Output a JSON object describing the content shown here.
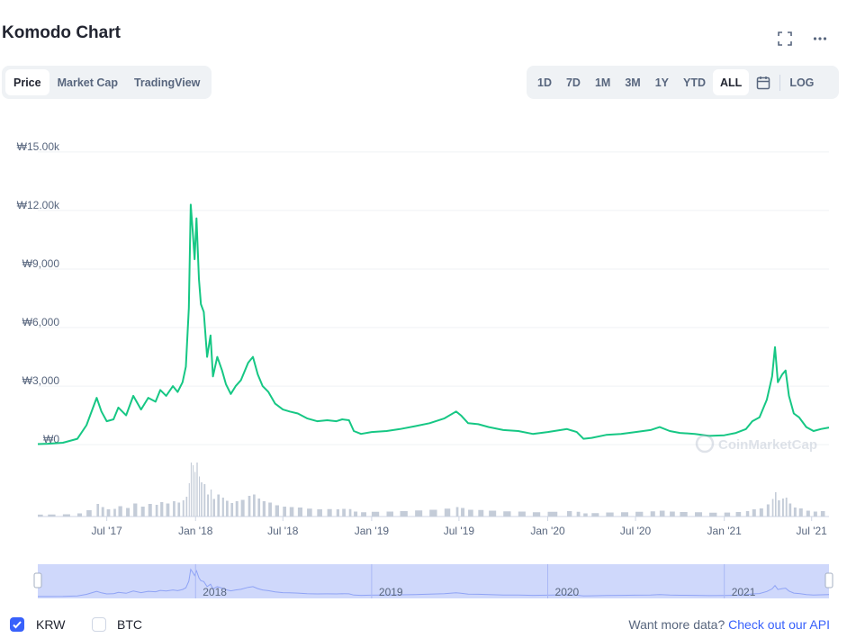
{
  "header": {
    "title": "Komodo Chart"
  },
  "icons": {
    "expand": "expand-icon",
    "more": "more-icon",
    "calendar": "calendar-icon"
  },
  "tabs": [
    {
      "label": "Price",
      "active": true
    },
    {
      "label": "Market Cap",
      "active": false
    },
    {
      "label": "TradingView",
      "active": false
    }
  ],
  "ranges": [
    {
      "label": "1D",
      "active": false
    },
    {
      "label": "7D",
      "active": false
    },
    {
      "label": "1M",
      "active": false
    },
    {
      "label": "3M",
      "active": false
    },
    {
      "label": "1Y",
      "active": false
    },
    {
      "label": "YTD",
      "active": false
    },
    {
      "label": "ALL",
      "active": true
    }
  ],
  "log_label": "LOG",
  "watermark": "CoinMarketCap",
  "footer": {
    "krw_label": "KRW",
    "btc_label": "BTC",
    "krw_checked": true,
    "btc_checked": false,
    "more_data_text": "Want more data?",
    "api_link": "Check out our API"
  },
  "colors": {
    "line": "#16c784",
    "volume": "#c4ccd8",
    "navigator_fill": "#cfd8fb",
    "navigator_line": "#8fa3f5",
    "accent": "#3861fb",
    "grid": "#eff2f5"
  },
  "chart_data": {
    "type": "line",
    "title": "Komodo Chart",
    "currency": "KRW",
    "y_ticks": [
      "₩0",
      "₩3,000",
      "₩6,000",
      "₩9,000",
      "₩12.00k",
      "₩15.00k"
    ],
    "y_tick_values": [
      0,
      3000,
      6000,
      9000,
      12000,
      15000
    ],
    "ylim": [
      -500,
      15500
    ],
    "x_ticks": [
      "Jul '17",
      "Jan '18",
      "Jul '18",
      "Jan '19",
      "Jul '19",
      "Jan '20",
      "Jul '20",
      "Jan '21",
      "Jul '21"
    ],
    "x_tick_dates": [
      "2017-07-01",
      "2018-01-01",
      "2018-07-01",
      "2019-01-01",
      "2019-07-01",
      "2020-01-01",
      "2020-07-01",
      "2021-01-01",
      "2021-07-01"
    ],
    "xlim": [
      "2017-02-08",
      "2021-08-06"
    ],
    "navigator_labels": [
      "2018",
      "2019",
      "2020",
      "2021"
    ],
    "navigator_dates": [
      "2018-01-01",
      "2019-01-01",
      "2020-01-01",
      "2021-01-01"
    ],
    "grid": true,
    "series": [
      {
        "points": [
          [
            "2017-02-08",
            30
          ],
          [
            "2017-03-01",
            50
          ],
          [
            "2017-04-01",
            100
          ],
          [
            "2017-05-01",
            300
          ],
          [
            "2017-05-20",
            1000
          ],
          [
            "2017-06-10",
            2400
          ],
          [
            "2017-06-20",
            1700
          ],
          [
            "2017-07-01",
            1200
          ],
          [
            "2017-07-15",
            1300
          ],
          [
            "2017-07-25",
            1900
          ],
          [
            "2017-08-10",
            1500
          ],
          [
            "2017-08-25",
            2500
          ],
          [
            "2017-09-10",
            1800
          ],
          [
            "2017-09-25",
            2400
          ],
          [
            "2017-10-10",
            2200
          ],
          [
            "2017-10-20",
            2800
          ],
          [
            "2017-11-01",
            2500
          ],
          [
            "2017-11-15",
            3000
          ],
          [
            "2017-11-25",
            2700
          ],
          [
            "2017-12-05",
            3200
          ],
          [
            "2017-12-12",
            4000
          ],
          [
            "2017-12-18",
            7000
          ],
          [
            "2017-12-22",
            12300
          ],
          [
            "2017-12-26",
            11000
          ],
          [
            "2017-12-30",
            9500
          ],
          [
            "2018-01-03",
            11600
          ],
          [
            "2018-01-08",
            8500
          ],
          [
            "2018-01-12",
            7200
          ],
          [
            "2018-01-18",
            6800
          ],
          [
            "2018-01-25",
            4500
          ],
          [
            "2018-02-01",
            5600
          ],
          [
            "2018-02-06",
            3500
          ],
          [
            "2018-02-15",
            4500
          ],
          [
            "2018-02-25",
            3800
          ],
          [
            "2018-03-05",
            3100
          ],
          [
            "2018-03-15",
            2600
          ],
          [
            "2018-03-25",
            3000
          ],
          [
            "2018-04-05",
            3300
          ],
          [
            "2018-04-20",
            4200
          ],
          [
            "2018-04-30",
            4500
          ],
          [
            "2018-05-10",
            3600
          ],
          [
            "2018-05-20",
            3000
          ],
          [
            "2018-06-01",
            2700
          ],
          [
            "2018-06-15",
            2100
          ],
          [
            "2018-07-01",
            1800
          ],
          [
            "2018-07-15",
            1700
          ],
          [
            "2018-08-01",
            1600
          ],
          [
            "2018-08-20",
            1350
          ],
          [
            "2018-09-10",
            1200
          ],
          [
            "2018-10-01",
            1250
          ],
          [
            "2018-10-20",
            1200
          ],
          [
            "2018-11-01",
            1300
          ],
          [
            "2018-11-15",
            1250
          ],
          [
            "2018-11-25",
            700
          ],
          [
            "2018-12-10",
            550
          ],
          [
            "2019-01-01",
            650
          ],
          [
            "2019-02-01",
            700
          ],
          [
            "2019-03-01",
            800
          ],
          [
            "2019-04-01",
            950
          ],
          [
            "2019-05-01",
            1100
          ],
          [
            "2019-06-01",
            1350
          ],
          [
            "2019-06-25",
            1700
          ],
          [
            "2019-07-05",
            1500
          ],
          [
            "2019-07-20",
            1100
          ],
          [
            "2019-08-10",
            1050
          ],
          [
            "2019-09-01",
            900
          ],
          [
            "2019-10-01",
            750
          ],
          [
            "2019-11-01",
            700
          ],
          [
            "2019-12-01",
            550
          ],
          [
            "2020-01-01",
            650
          ],
          [
            "2020-02-10",
            800
          ],
          [
            "2020-03-01",
            650
          ],
          [
            "2020-03-15",
            300
          ],
          [
            "2020-04-01",
            350
          ],
          [
            "2020-05-01",
            500
          ],
          [
            "2020-06-01",
            550
          ],
          [
            "2020-07-01",
            650
          ],
          [
            "2020-08-01",
            750
          ],
          [
            "2020-08-20",
            900
          ],
          [
            "2020-09-10",
            700
          ],
          [
            "2020-10-01",
            600
          ],
          [
            "2020-11-01",
            550
          ],
          [
            "2020-12-01",
            450
          ],
          [
            "2021-01-01",
            480
          ],
          [
            "2021-01-25",
            600
          ],
          [
            "2021-02-15",
            800
          ],
          [
            "2021-02-28",
            1200
          ],
          [
            "2021-03-15",
            1400
          ],
          [
            "2021-03-30",
            2300
          ],
          [
            "2021-04-10",
            3500
          ],
          [
            "2021-04-16",
            5000
          ],
          [
            "2021-04-22",
            3200
          ],
          [
            "2021-05-01",
            3600
          ],
          [
            "2021-05-08",
            3800
          ],
          [
            "2021-05-15",
            2500
          ],
          [
            "2021-05-25",
            1600
          ],
          [
            "2021-06-05",
            1400
          ],
          [
            "2021-06-20",
            900
          ],
          [
            "2021-07-05",
            700
          ],
          [
            "2021-07-20",
            800
          ],
          [
            "2021-08-06",
            880
          ]
        ]
      }
    ]
  }
}
